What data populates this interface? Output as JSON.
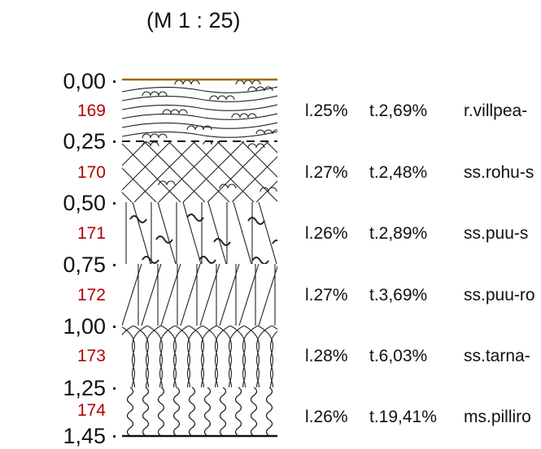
{
  "title": "(M 1 : 25)",
  "depths": [
    "0,00",
    "0,25",
    "0,50",
    "0,75",
    "1,00",
    "1,25",
    "1,45"
  ],
  "layers": [
    {
      "sample": "169",
      "loi": "l.25%",
      "ash": "t.2,69%",
      "peat": "r.villpea-",
      "pattern": "eriophorum"
    },
    {
      "sample": "170",
      "loi": "l.27%",
      "ash": "t.2,48%",
      "peat": "ss.rohu-s",
      "pattern": "sedge-sphagnum"
    },
    {
      "sample": "171",
      "loi": "l.26%",
      "ash": "t.2,89%",
      "peat": "ss.puu-s",
      "pattern": "wood-sphagnum"
    },
    {
      "sample": "172",
      "loi": "l.27%",
      "ash": "t.3,69%",
      "peat": "ss.puu-ro",
      "pattern": "wood-reed"
    },
    {
      "sample": "173",
      "loi": "l.28%",
      "ash": "t.6,03%",
      "peat": "ss.tarna-",
      "pattern": "sedge"
    },
    {
      "sample": "174",
      "loi": "l.26%",
      "ash": "t.19,41%",
      "peat": "ms.pilliro",
      "pattern": "reed"
    }
  ],
  "colors": {
    "sample_label": "#b30000",
    "surface_line": "#a0660a",
    "ink": "#222222"
  }
}
